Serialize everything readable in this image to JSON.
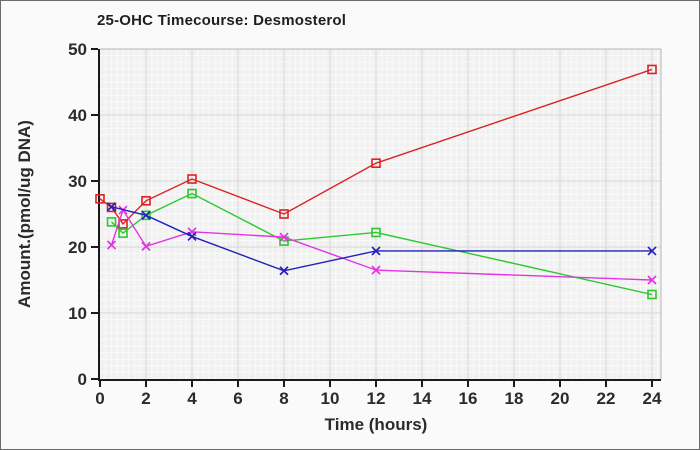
{
  "window": {
    "background": "#fafafa",
    "frame_border": "#6b6b6b",
    "plot_bg": "#f1f1f1",
    "minor_grid": "#fafafa",
    "major_grid": "#d8d8d8",
    "plot_border": "#b5b5b5",
    "axis_color": "#1a1a1a",
    "text_color": "#2b2b2b"
  },
  "chart_data": {
    "type": "line",
    "title": "25-OHC Timecourse: Desmosterol",
    "xlabel": "Time (hours)",
    "ylabel": "Amount.(pmol/ug DNA)",
    "xlim": [
      0,
      24.4
    ],
    "ylim": [
      0,
      50
    ],
    "x_ticks": [
      0,
      2,
      4,
      6,
      8,
      10,
      12,
      14,
      16,
      18,
      20,
      22,
      24
    ],
    "y_ticks": [
      0,
      10,
      20,
      30,
      40,
      50
    ],
    "grid": true,
    "legend": "none",
    "series": [
      {
        "name": "series-red",
        "color": "#dd2222",
        "marker": "square",
        "x": [
          0,
          0.5,
          1,
          2,
          4,
          8,
          12,
          24
        ],
        "y": [
          27.3,
          26.0,
          23.5,
          27.0,
          30.3,
          25.0,
          32.7,
          46.9
        ]
      },
      {
        "name": "series-green",
        "color": "#2ec82e",
        "marker": "square",
        "x": [
          0.5,
          1,
          2,
          4,
          8,
          12,
          24
        ],
        "y": [
          23.8,
          22.1,
          24.8,
          28.1,
          20.9,
          22.2,
          12.8
        ]
      },
      {
        "name": "series-magenta",
        "color": "#e433e4",
        "marker": "x",
        "x": [
          0.5,
          1,
          2,
          4,
          8,
          12,
          24
        ],
        "y": [
          20.3,
          25.6,
          20.1,
          22.3,
          21.5,
          16.5,
          15.0
        ]
      },
      {
        "name": "series-blue",
        "color": "#2222bb",
        "marker": "x",
        "x": [
          0.5,
          2,
          4,
          8,
          12,
          24
        ],
        "y": [
          26.1,
          24.8,
          21.6,
          16.4,
          19.4,
          19.4
        ]
      }
    ]
  }
}
